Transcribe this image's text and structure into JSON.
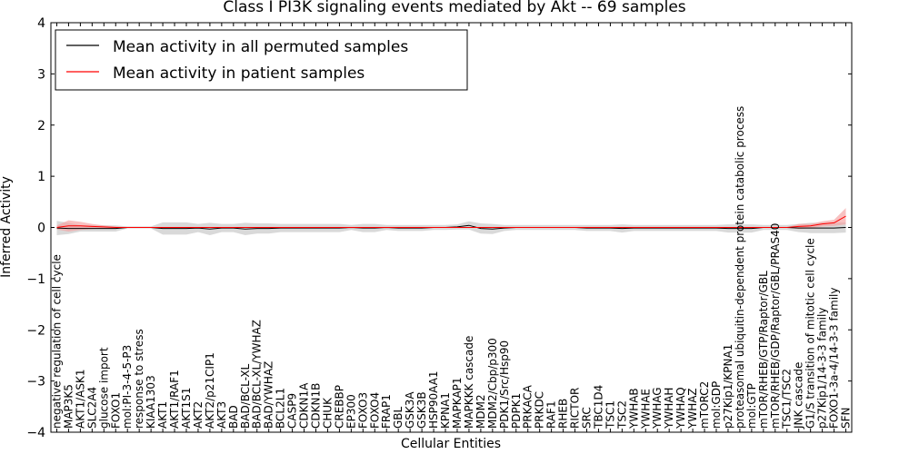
{
  "chart_data": {
    "type": "line",
    "title": "Class I PI3K signaling events mediated by Akt -- 69 samples",
    "xlabel": "Cellular Entities",
    "ylabel": "Inferred Activity",
    "ylim": [
      -4,
      4
    ],
    "yticks": [
      4,
      3,
      2,
      1,
      0,
      -1,
      -2,
      -3,
      -4
    ],
    "ytick_labels": [
      "4",
      "3",
      "2",
      "1",
      "0",
      "−1",
      "−2",
      "−3",
      "−4"
    ],
    "legend_position": "top-left",
    "categories": [
      "negative regulation of cell cycle",
      "MAP3K5",
      "AKT1/ASK1",
      "SLC2A4",
      "glucose import",
      "FOXO1",
      "mol:PI-3-4-5-P3",
      "response to stress",
      "KIAA1303",
      "AKT1",
      "AKT1/RAF1",
      "AKT1S1",
      "AKT2",
      "AKT2/p21CIP1",
      "AKT3",
      "BAD",
      "BAD/BCL-XL",
      "BAD/BCL-XL/YWHAZ",
      "BAD/YWHAZ",
      "BCL2L1",
      "CASP9",
      "CDKN1A",
      "CDKN1B",
      "CHUK",
      "CREBBP",
      "EP300",
      "FOXO3",
      "FOXO4",
      "FRAP1",
      "GBL",
      "GSK3A",
      "GSK3B",
      "HSP90AA1",
      "KPNA1",
      "MAPKAP1",
      "MAPKKK cascade",
      "MDM2",
      "MDM2/Cbp/p300",
      "PDK1/Src/Hsp90",
      "PDPK1",
      "PRKACA",
      "PRKDC",
      "RAF1",
      "RHEB",
      "RICTOR",
      "SRC",
      "TBC1D4",
      "TSC1",
      "TSC2",
      "YWHAB",
      "YWHAE",
      "YWHAG",
      "YWHAH",
      "YWHAQ",
      "YWHAZ",
      "mTORC2",
      "mol:GDP",
      "p27Kip1/KPNA1",
      "proteasomal ubiquitin-dependent protein catabolic process",
      "mol:GTP",
      "mTOR/RHEB/GTP/Raptor/GBL",
      "mTOR/RHEB/GDP/Raptor/GBL/PRAS40",
      "TSC1/TSC2",
      "JNK cascade",
      "G1/S transition of mitotic cell cycle",
      "p27Kip1/14-3-3 family",
      "FOXO1-3a-4/14-3-3 family",
      "SFN"
    ],
    "series": [
      {
        "name": "Mean activity in all permuted samples",
        "color": "#000000",
        "band_color": "#cccccc",
        "values": [
          -0.01,
          -0.02,
          -0.02,
          -0.02,
          -0.02,
          -0.02,
          0.0,
          0.0,
          0.0,
          -0.02,
          -0.02,
          -0.02,
          -0.01,
          -0.03,
          -0.01,
          -0.01,
          -0.03,
          -0.02,
          -0.02,
          -0.01,
          -0.01,
          -0.01,
          -0.01,
          -0.01,
          -0.01,
          0.0,
          -0.01,
          -0.01,
          0.0,
          -0.01,
          -0.01,
          -0.01,
          0.0,
          0.0,
          0.01,
          0.04,
          -0.02,
          -0.03,
          -0.01,
          0.0,
          0.0,
          0.0,
          0.0,
          0.0,
          0.0,
          -0.01,
          -0.01,
          -0.01,
          -0.02,
          -0.01,
          -0.01,
          -0.01,
          -0.01,
          -0.01,
          -0.01,
          -0.01,
          -0.01,
          -0.02,
          -0.02,
          -0.02,
          0.0,
          0.0,
          0.0,
          -0.01,
          -0.01,
          -0.01,
          -0.01,
          0.0
        ],
        "band_half_width": [
          0.14,
          0.11,
          0.06,
          0.06,
          0.06,
          0.06,
          0.02,
          0.02,
          0.02,
          0.12,
          0.12,
          0.12,
          0.08,
          0.12,
          0.08,
          0.08,
          0.12,
          0.1,
          0.1,
          0.08,
          0.08,
          0.08,
          0.08,
          0.08,
          0.08,
          0.05,
          0.08,
          0.08,
          0.05,
          0.06,
          0.06,
          0.06,
          0.05,
          0.05,
          0.05,
          0.08,
          0.1,
          0.1,
          0.06,
          0.05,
          0.05,
          0.05,
          0.05,
          0.05,
          0.05,
          0.06,
          0.06,
          0.06,
          0.08,
          0.06,
          0.06,
          0.06,
          0.06,
          0.06,
          0.06,
          0.06,
          0.06,
          0.08,
          0.08,
          0.08,
          0.05,
          0.05,
          0.05,
          0.08,
          0.1,
          0.1,
          0.1,
          0.1
        ]
      },
      {
        "name": "Mean activity in patient samples",
        "color": "#ff0000",
        "band_color": "#f4a0a0",
        "values": [
          0.0,
          0.03,
          0.03,
          0.02,
          0.01,
          0.0,
          0.0,
          0.0,
          0.0,
          0.0,
          0.0,
          0.0,
          0.0,
          0.0,
          0.0,
          0.0,
          0.0,
          0.0,
          0.0,
          0.0,
          0.0,
          0.0,
          0.0,
          0.0,
          0.0,
          0.0,
          0.0,
          0.0,
          0.0,
          0.0,
          0.0,
          0.0,
          0.0,
          0.0,
          0.0,
          0.0,
          0.0,
          0.0,
          0.0,
          0.0,
          0.0,
          0.0,
          0.0,
          0.0,
          0.0,
          0.0,
          0.0,
          0.0,
          0.0,
          0.0,
          0.0,
          0.0,
          0.0,
          0.0,
          0.0,
          0.0,
          0.0,
          0.0,
          0.0,
          0.0,
          0.0,
          0.0,
          0.0,
          0.02,
          0.03,
          0.07,
          0.09,
          0.22
        ],
        "band_half_width": [
          0.04,
          0.11,
          0.08,
          0.05,
          0.03,
          0.02,
          0.0,
          0.0,
          0.0,
          0.0,
          0.0,
          0.0,
          0.0,
          0.0,
          0.0,
          0.0,
          0.0,
          0.0,
          0.0,
          0.0,
          0.0,
          0.0,
          0.0,
          0.0,
          0.0,
          0.0,
          0.0,
          0.0,
          0.0,
          0.0,
          0.0,
          0.0,
          0.0,
          0.0,
          0.0,
          0.0,
          0.0,
          0.0,
          0.0,
          0.0,
          0.0,
          0.0,
          0.0,
          0.0,
          0.0,
          0.0,
          0.0,
          0.0,
          0.0,
          0.0,
          0.0,
          0.0,
          0.0,
          0.0,
          0.0,
          0.0,
          0.0,
          0.0,
          0.0,
          0.0,
          0.0,
          0.0,
          0.0,
          0.05,
          0.04,
          0.05,
          0.06,
          0.16
        ]
      }
    ]
  }
}
